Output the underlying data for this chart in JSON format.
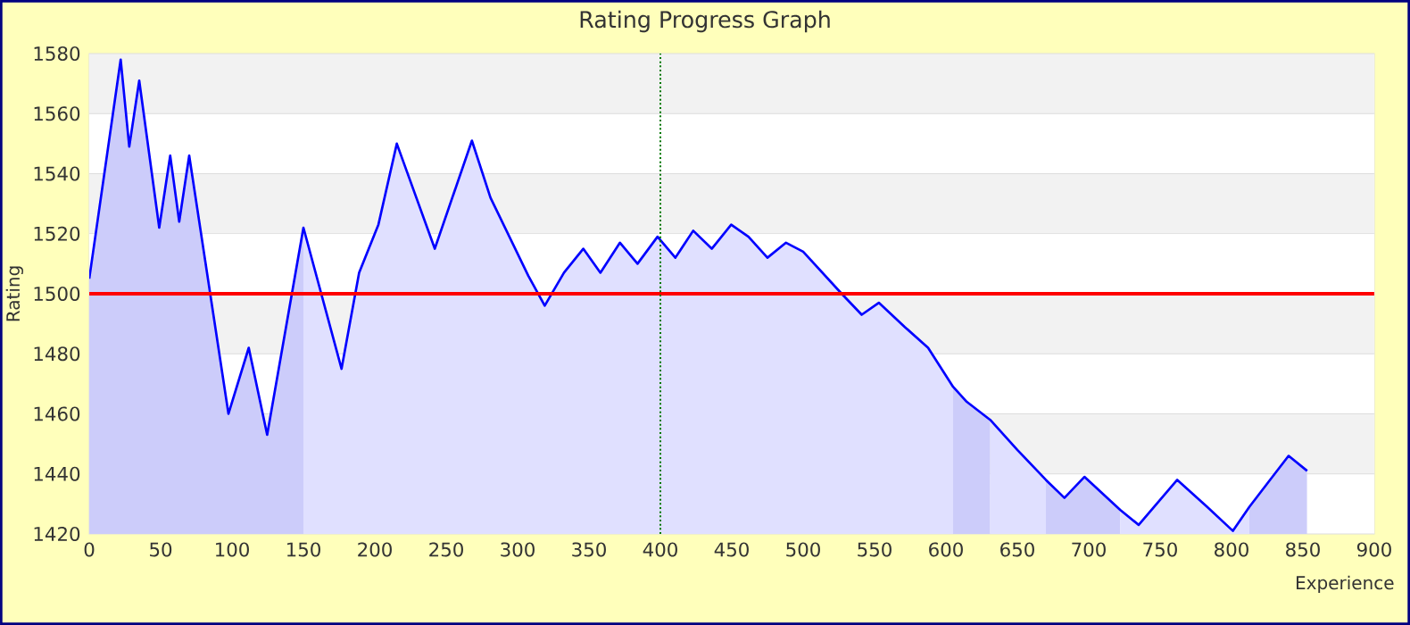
{
  "chart_data": {
    "type": "area",
    "title": "Rating Progress Graph",
    "xlabel": "Experience",
    "ylabel": "Rating",
    "x": [
      0,
      22,
      28,
      35,
      49,
      56.7,
      63,
      70,
      97.5,
      111.7,
      124.6,
      150,
      176.7,
      189,
      202.5,
      215.4,
      242,
      268,
      281,
      307.5,
      319,
      332.5,
      346,
      358,
      371.7,
      384,
      398,
      410.5,
      423,
      436,
      449.6,
      461.7,
      475,
      488,
      500,
      527,
      541,
      553,
      571,
      587.5,
      605,
      614.6,
      631,
      650,
      670,
      683,
      697,
      722,
      735,
      762,
      783,
      801,
      812.5,
      827,
      840,
      853
    ],
    "series": [
      {
        "color": "#0000ff",
        "values": [
          1505,
          1578,
          1549,
          1571,
          1522,
          1546,
          1524,
          1546,
          1460,
          1482,
          1453,
          1522,
          1475,
          1507,
          1523,
          1550,
          1515,
          1551,
          1532,
          1506,
          1496,
          1507,
          1515,
          1507,
          1517,
          1510,
          1519,
          1512,
          1521,
          1515,
          1523,
          1519,
          1512,
          1517,
          1514,
          1500,
          1493,
          1497,
          1489,
          1482,
          1469,
          1464,
          1458,
          1448,
          1438,
          1432,
          1439,
          1428,
          1423,
          1438,
          1429,
          1421,
          1429,
          1438,
          1446,
          1441
        ]
      }
    ],
    "xlim": [
      0,
      900
    ],
    "xticks": [
      0,
      50,
      100,
      150,
      200,
      250,
      300,
      350,
      400,
      450,
      500,
      550,
      600,
      650,
      700,
      750,
      800,
      850,
      900
    ],
    "ylim": [
      1420,
      1580
    ],
    "yticks": [
      1420,
      1440,
      1460,
      1480,
      1500,
      1520,
      1540,
      1560,
      1580
    ],
    "grid": "y",
    "ref_lines": [
      {
        "axis": "y",
        "value": 1500,
        "color": "#ff0000",
        "line_style": "solid"
      },
      {
        "axis": "x",
        "value": 400,
        "color": "#007700",
        "line_style": "dotted"
      }
    ],
    "bands": [
      {
        "axis": "x",
        "from": 0,
        "to": 150,
        "color": "#ccccfa"
      },
      {
        "axis": "x",
        "from": 605,
        "to": 631,
        "color": "#ccccfa"
      },
      {
        "axis": "x",
        "from": 670,
        "to": 722,
        "color": "#ccccfa"
      },
      {
        "axis": "x",
        "from": 812.5,
        "to": 853,
        "color": "#ccccfa"
      }
    ]
  }
}
